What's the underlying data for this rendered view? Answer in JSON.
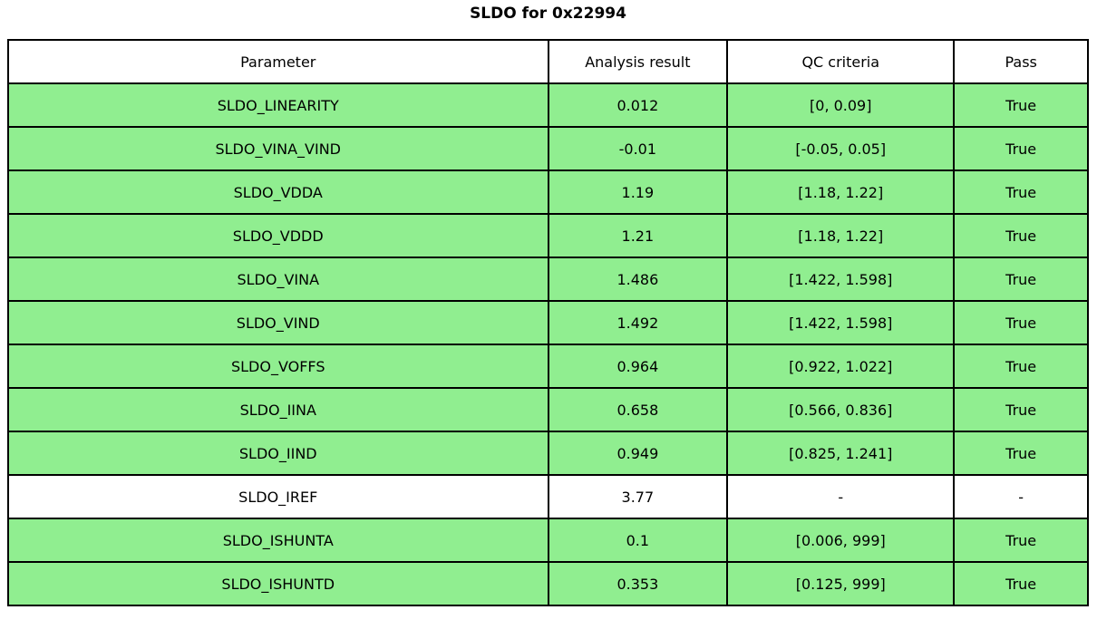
{
  "chart_data": {
    "type": "table",
    "title": "SLDO for 0x22994",
    "columns": [
      "Parameter",
      "Analysis result",
      "QC criteria",
      "Pass"
    ],
    "rows": [
      {
        "parameter": "SLDO_LINEARITY",
        "result": "0.012",
        "qc": "[0, 0.09]",
        "pass": "True",
        "highlight": true
      },
      {
        "parameter": "SLDO_VINA_VIND",
        "result": "-0.01",
        "qc": "[-0.05, 0.05]",
        "pass": "True",
        "highlight": true
      },
      {
        "parameter": "SLDO_VDDA",
        "result": "1.19",
        "qc": "[1.18, 1.22]",
        "pass": "True",
        "highlight": true
      },
      {
        "parameter": "SLDO_VDDD",
        "result": "1.21",
        "qc": "[1.18, 1.22]",
        "pass": "True",
        "highlight": true
      },
      {
        "parameter": "SLDO_VINA",
        "result": "1.486",
        "qc": "[1.422, 1.598]",
        "pass": "True",
        "highlight": true
      },
      {
        "parameter": "SLDO_VIND",
        "result": "1.492",
        "qc": "[1.422, 1.598]",
        "pass": "True",
        "highlight": true
      },
      {
        "parameter": "SLDO_VOFFS",
        "result": "0.964",
        "qc": "[0.922, 1.022]",
        "pass": "True",
        "highlight": true
      },
      {
        "parameter": "SLDO_IINA",
        "result": "0.658",
        "qc": "[0.566, 0.836]",
        "pass": "True",
        "highlight": true
      },
      {
        "parameter": "SLDO_IIND",
        "result": "0.949",
        "qc": "[0.825, 1.241]",
        "pass": "True",
        "highlight": true
      },
      {
        "parameter": "SLDO_IREF",
        "result": "3.77",
        "qc": "-",
        "pass": "-",
        "highlight": false
      },
      {
        "parameter": "SLDO_ISHUNTA",
        "result": "0.1",
        "qc": "[0.006, 999]",
        "pass": "True",
        "highlight": true
      },
      {
        "parameter": "SLDO_ISHUNTD",
        "result": "0.353",
        "qc": "[0.125, 999]",
        "pass": "True",
        "highlight": true
      }
    ],
    "legend": "off",
    "grid": "table-borders"
  },
  "colors": {
    "pass_row_green": "#90ee90",
    "neutral_row_white": "#ffffff",
    "border_black": "#000000",
    "text_black": "#000000"
  }
}
